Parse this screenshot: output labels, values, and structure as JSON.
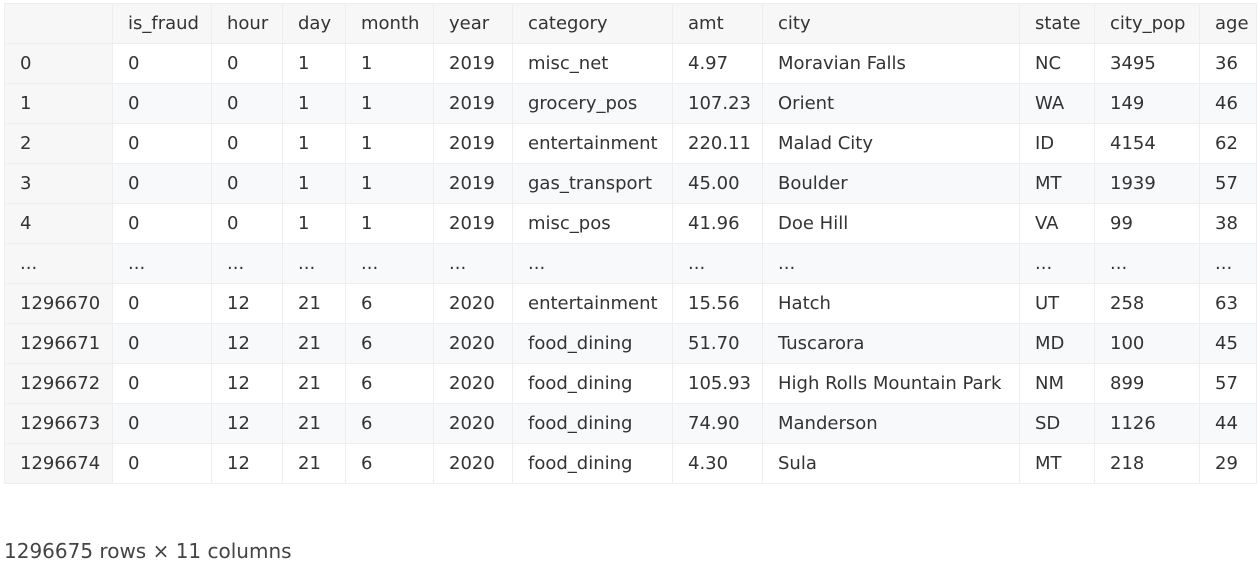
{
  "table": {
    "columns": [
      "",
      "is_fraud",
      "hour",
      "day",
      "month",
      "year",
      "category",
      "amt",
      "city",
      "state",
      "city_pop",
      "age"
    ],
    "rows": [
      [
        "0",
        "0",
        "0",
        "1",
        "1",
        "2019",
        "misc_net",
        "4.97",
        "Moravian Falls",
        "NC",
        "3495",
        "36"
      ],
      [
        "1",
        "0",
        "0",
        "1",
        "1",
        "2019",
        "grocery_pos",
        "107.23",
        "Orient",
        "WA",
        "149",
        "46"
      ],
      [
        "2",
        "0",
        "0",
        "1",
        "1",
        "2019",
        "entertainment",
        "220.11",
        "Malad City",
        "ID",
        "4154",
        "62"
      ],
      [
        "3",
        "0",
        "0",
        "1",
        "1",
        "2019",
        "gas_transport",
        "45.00",
        "Boulder",
        "MT",
        "1939",
        "57"
      ],
      [
        "4",
        "0",
        "0",
        "1",
        "1",
        "2019",
        "misc_pos",
        "41.96",
        "Doe Hill",
        "VA",
        "99",
        "38"
      ],
      [
        "...",
        "...",
        "...",
        "...",
        "...",
        "...",
        "...",
        "...",
        "...",
        "...",
        "...",
        "..."
      ],
      [
        "1296670",
        "0",
        "12",
        "21",
        "6",
        "2020",
        "entertainment",
        "15.56",
        "Hatch",
        "UT",
        "258",
        "63"
      ],
      [
        "1296671",
        "0",
        "12",
        "21",
        "6",
        "2020",
        "food_dining",
        "51.70",
        "Tuscarora",
        "MD",
        "100",
        "45"
      ],
      [
        "1296672",
        "0",
        "12",
        "21",
        "6",
        "2020",
        "food_dining",
        "105.93",
        "High Rolls Mountain Park",
        "NM",
        "899",
        "57"
      ],
      [
        "1296673",
        "0",
        "12",
        "21",
        "6",
        "2020",
        "food_dining",
        "74.90",
        "Manderson",
        "SD",
        "1126",
        "44"
      ],
      [
        "1296674",
        "0",
        "12",
        "21",
        "6",
        "2020",
        "food_dining",
        "4.30",
        "Sula",
        "MT",
        "218",
        "29"
      ]
    ]
  },
  "summary": "1296675 rows × 11 columns"
}
